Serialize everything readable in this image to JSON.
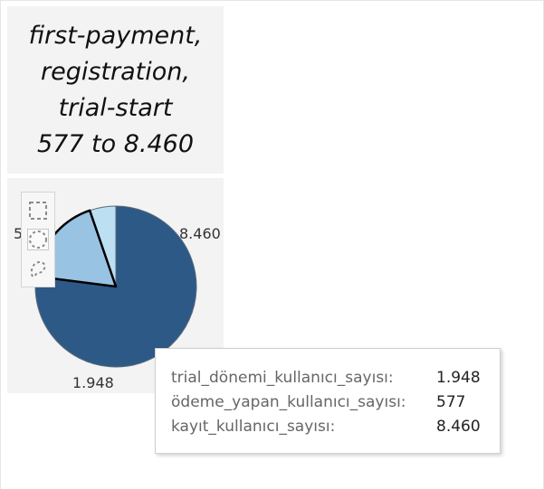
{
  "title": {
    "lines": [
      "first-payment,",
      "registration,",
      "trial-start",
      "577 to 8.460"
    ]
  },
  "chart_data": {
    "type": "pie",
    "slices": [
      {
        "field": "kayıt_kullanıcı_sayısı",
        "value": 8460,
        "label": "8.460",
        "color": "#2d5987"
      },
      {
        "field": "trial_dönemi_kullanıcı_sayısı",
        "value": 1948,
        "label": "1.948",
        "color": "#99c3e3",
        "highlighted": true
      },
      {
        "field": "ödeme_yapan_kullanıcı_sayısı",
        "value": 577,
        "label": "577",
        "color": "#bddff2"
      }
    ],
    "visible_labels": {
      "large": "8.460",
      "bottom": "1.948",
      "left_partial": "5"
    }
  },
  "toolbar": {
    "tools": [
      "rectangle-select-icon",
      "radial-select-icon",
      "lasso-select-icon"
    ]
  },
  "tooltip": {
    "rows": [
      {
        "label": "trial_dönemi_kullanıcı_sayısı:",
        "value": "1.948"
      },
      {
        "label": "ödeme_yapan_kullanıcı_sayısı:",
        "value": "577"
      },
      {
        "label": "kayıt_kullanıcı_sayısı:",
        "value": "8.460"
      }
    ]
  },
  "colors": {
    "panel_bg": "#f3f3f3",
    "dark_blue": "#2d5987",
    "mid_blue": "#99c3e3",
    "light_blue": "#bddff2"
  }
}
